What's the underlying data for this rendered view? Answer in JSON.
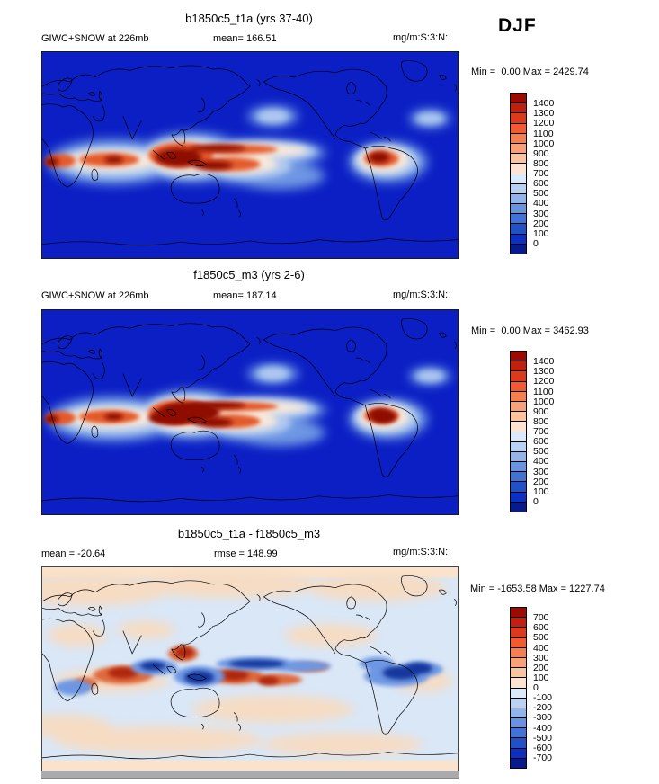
{
  "season": "DJF",
  "chart_data": [
    {
      "type": "heatmap",
      "panel": "top",
      "title": "b1850c5_t1a (yrs 37-40)",
      "left_label": "GIWC+SNOW at 226mb",
      "center_label": "mean= 166.51",
      "units_label": "mg/m:S:3:N:",
      "mean": 166.51,
      "min": 0.0,
      "max": 2429.74,
      "minmax_label": "Min =  0.00 Max = 2429.74",
      "colorbar": {
        "levels": [
          "1400",
          "1300",
          "1200",
          "1100",
          "1000",
          "900",
          "800",
          "700",
          "600",
          "500",
          "400",
          "300",
          "200",
          "100",
          "0"
        ],
        "colors": [
          "#9b0b03",
          "#be2110",
          "#dc3a1c",
          "#f05b31",
          "#f5804f",
          "#f8a077",
          "#fbc39e",
          "#fde3d1",
          "#dce9f8",
          "#bad2f2",
          "#92b4e9",
          "#6993de",
          "#4272d3",
          "#2151c7",
          "#0e2fc4",
          "#071b8c"
        ]
      },
      "map_description": "Pacific-centered global map; dark blue background (low GIWC+SNOW) with white/red ITCZ and SPCZ convective bands over Africa, the Maritime Continent, tropical Pacific and South America"
    },
    {
      "type": "heatmap",
      "panel": "middle",
      "title": "f1850c5_m3 (yrs 2-6)",
      "left_label": "GIWC+SNOW at 226mb",
      "center_label": "mean= 187.14",
      "units_label": "mg/m:S:3:N:",
      "mean": 187.14,
      "min": 0.0,
      "max": 3462.93,
      "minmax_label": "Min =  0.00 Max = 3462.93",
      "colorbar": {
        "levels": [
          "1400",
          "1300",
          "1200",
          "1100",
          "1000",
          "900",
          "800",
          "700",
          "600",
          "500",
          "400",
          "300",
          "200",
          "100",
          "0"
        ],
        "colors": [
          "#9b0b03",
          "#be2110",
          "#dc3a1c",
          "#f05b31",
          "#f5804f",
          "#f8a077",
          "#fbc39e",
          "#fde3d1",
          "#dce9f8",
          "#bad2f2",
          "#92b4e9",
          "#6993de",
          "#4272d3",
          "#2151c7",
          "#0e2fc4",
          "#071b8c"
        ]
      },
      "map_description": "Same variable for case 2; stronger dark-red convective maxima over the Maritime Continent and tropical bands"
    },
    {
      "type": "heatmap",
      "panel": "bottom-difference",
      "title": "b1850c5_t1a - f1850c5_m3",
      "left_label": "mean = -20.64",
      "center_label": "rmse = 148.99",
      "units_label": "mg/m:S:3:N:",
      "mean": -20.64,
      "rmse": 148.99,
      "min": -1653.58,
      "max": 1227.74,
      "minmax_label": "Min = -1653.58 Max = 1227.74",
      "colorbar": {
        "levels": [
          "700",
          "600",
          "500",
          "400",
          "300",
          "200",
          "100",
          "0",
          "-100",
          "-200",
          "-300",
          "-400",
          "-500",
          "-600",
          "-700"
        ],
        "colors": [
          "#9b0b03",
          "#be2110",
          "#dc3a1c",
          "#f05b31",
          "#f5804f",
          "#f8a077",
          "#fbc39e",
          "#fde3d1",
          "#dce9f8",
          "#bad2f2",
          "#92b4e9",
          "#6993de",
          "#4272d3",
          "#2151c7",
          "#0e2fc4",
          "#071b8c"
        ]
      },
      "map_description": "Difference map on pale peach/light-blue background with red (positive) and dark blue (negative) anomalies along the tropics"
    }
  ]
}
